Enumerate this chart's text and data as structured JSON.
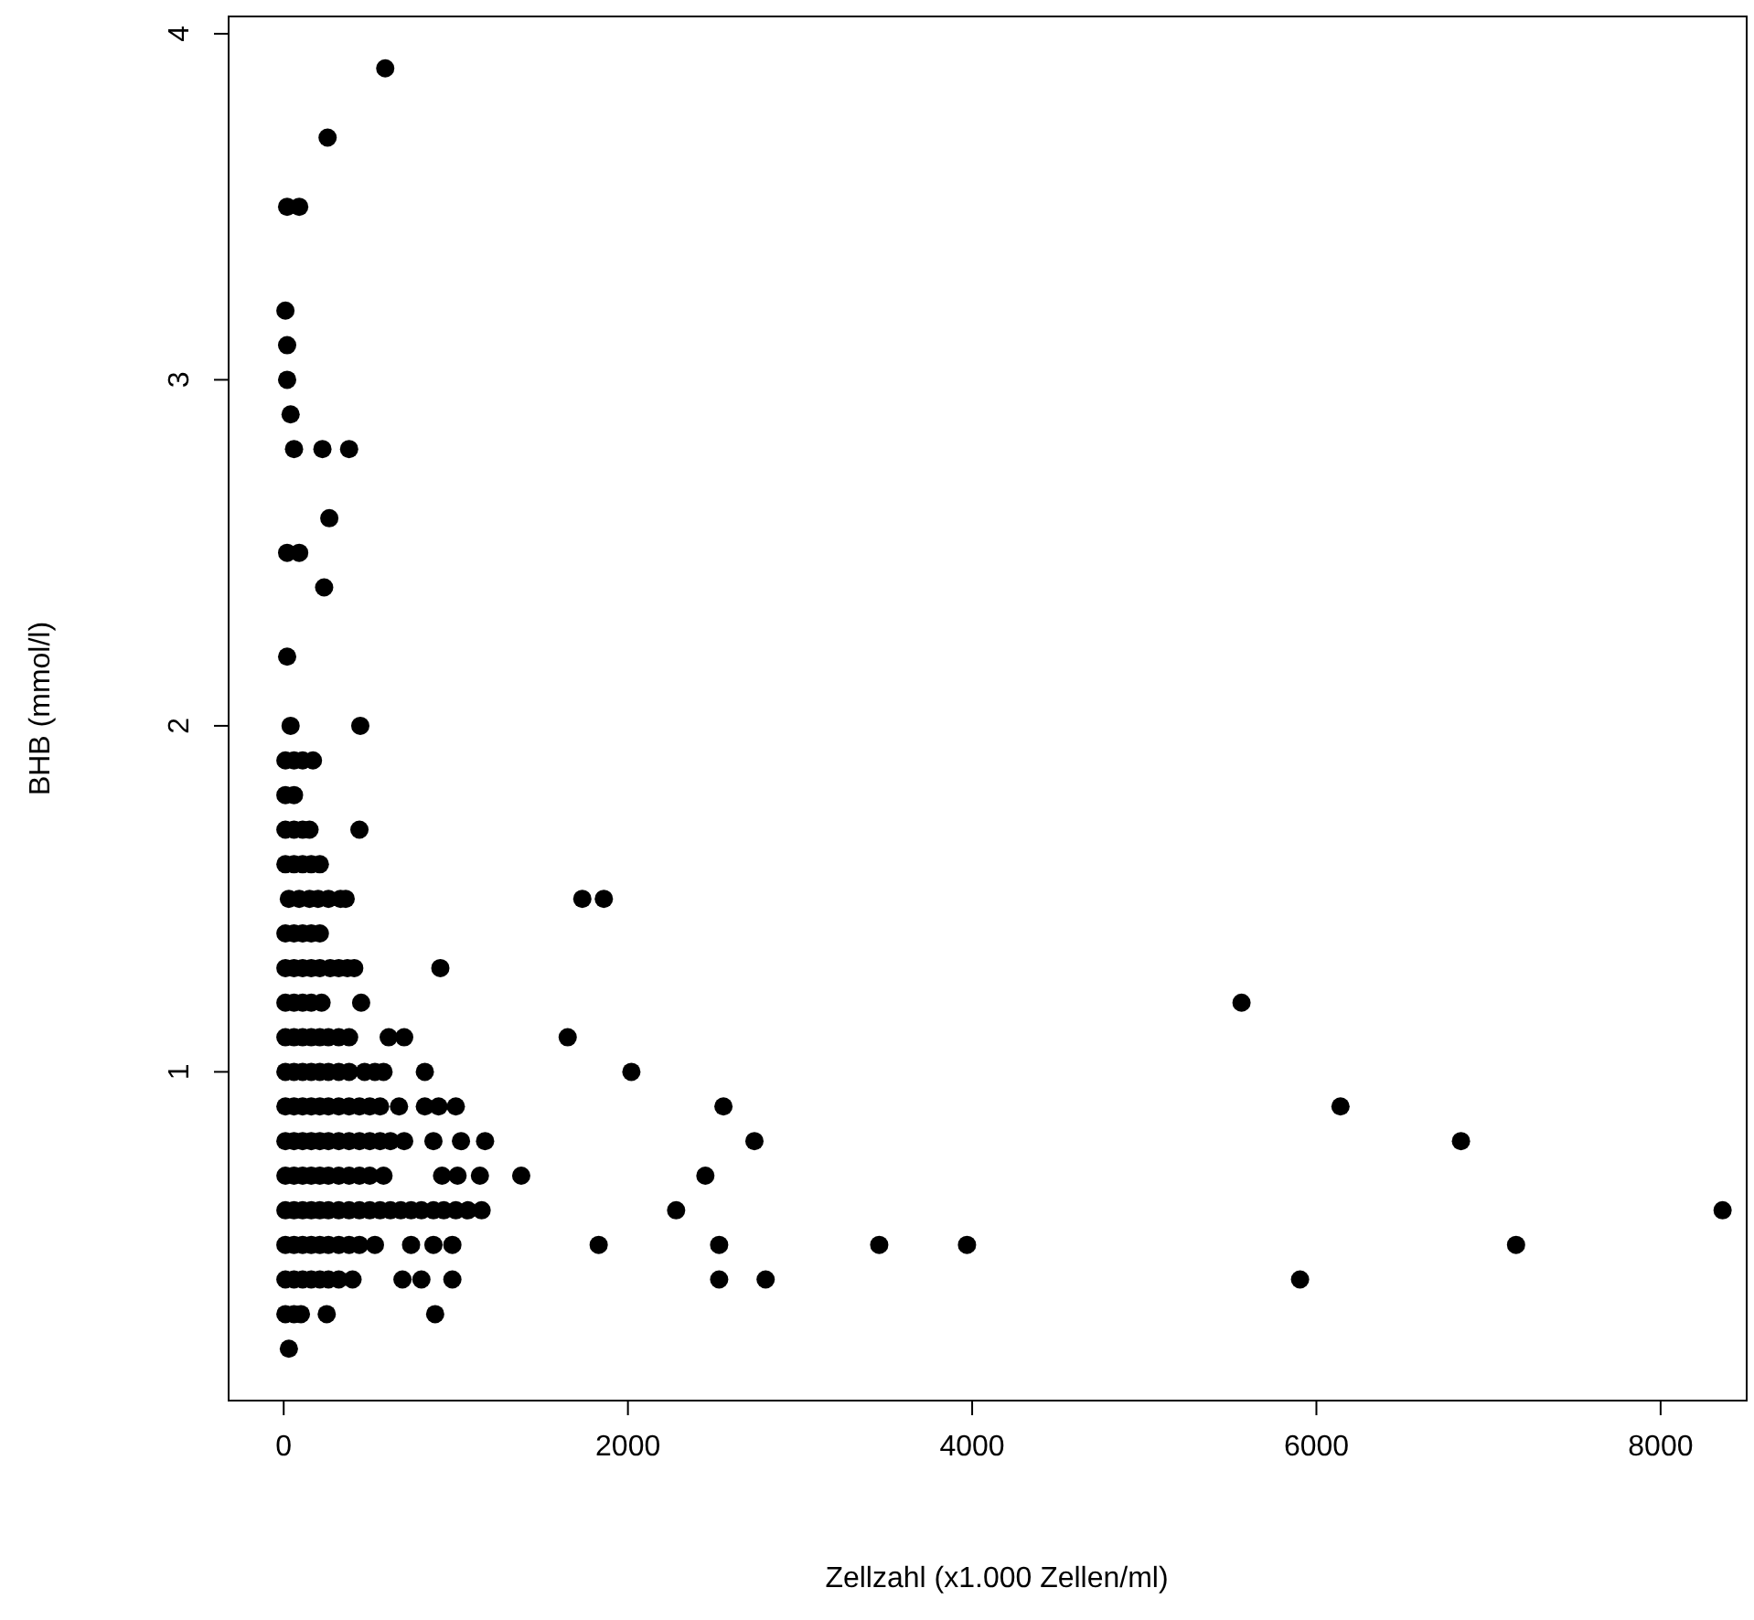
{
  "chart_data": {
    "type": "scatter",
    "xlabel": "Zellzahl (x1.000 Zellen/ml)",
    "ylabel": "BHB (mmol/l)",
    "xlim": [
      -320,
      8500
    ],
    "ylim": [
      0.05,
      4.05
    ],
    "xticks": [
      0,
      2000,
      4000,
      6000,
      8000
    ],
    "yticks": [
      1,
      2,
      3,
      4
    ],
    "grid": false,
    "marker": "circle",
    "series": [
      {
        "color": "#000000",
        "x": [
          590,
          255,
          20,
          90,
          10,
          20,
          20,
          40,
          60,
          225,
          380,
          265,
          20,
          90,
          235,
          20,
          40,
          445,
          10,
          60,
          110,
          170,
          10,
          60,
          10,
          60,
          110,
          150,
          440,
          10,
          60,
          110,
          160,
          210,
          30,
          90,
          150,
          200,
          260,
          330,
          360,
          1735,
          1860,
          10,
          60,
          110,
          160,
          210,
          10,
          60,
          110,
          160,
          210,
          270,
          320,
          370,
          410,
          910,
          10,
          60,
          110,
          160,
          220,
          450,
          5565,
          10,
          60,
          110,
          160,
          210,
          260,
          320,
          380,
          610,
          700,
          1650,
          10,
          60,
          110,
          160,
          210,
          260,
          320,
          380,
          470,
          530,
          580,
          820,
          2020,
          10,
          60,
          110,
          160,
          210,
          260,
          320,
          380,
          440,
          500,
          560,
          670,
          820,
          900,
          1000,
          2555,
          6140,
          10,
          60,
          110,
          160,
          210,
          260,
          320,
          380,
          440,
          500,
          560,
          620,
          700,
          870,
          1030,
          1170,
          2735,
          6840,
          10,
          60,
          110,
          160,
          210,
          260,
          320,
          380,
          440,
          500,
          580,
          920,
          1010,
          1140,
          1380,
          2450,
          10,
          60,
          110,
          160,
          210,
          260,
          320,
          380,
          440,
          500,
          560,
          620,
          680,
          740,
          800,
          870,
          930,
          1000,
          1070,
          1150,
          2280,
          8360,
          10,
          60,
          110,
          160,
          210,
          260,
          320,
          380,
          440,
          530,
          740,
          870,
          980,
          1830,
          2530,
          3460,
          3970,
          7160,
          10,
          60,
          110,
          160,
          210,
          260,
          320,
          400,
          690,
          800,
          980,
          2530,
          2800,
          5905,
          10,
          60,
          100,
          250,
          880,
          30
        ],
        "values": [
          3.9,
          3.7,
          3.5,
          3.5,
          3.2,
          3.1,
          3.0,
          2.9,
          2.8,
          2.8,
          2.8,
          2.6,
          2.5,
          2.5,
          2.4,
          2.2,
          2.0,
          2.0,
          1.9,
          1.9,
          1.9,
          1.9,
          1.8,
          1.8,
          1.7,
          1.7,
          1.7,
          1.7,
          1.7,
          1.6,
          1.6,
          1.6,
          1.6,
          1.6,
          1.5,
          1.5,
          1.5,
          1.5,
          1.5,
          1.5,
          1.5,
          1.5,
          1.5,
          1.4,
          1.4,
          1.4,
          1.4,
          1.4,
          1.3,
          1.3,
          1.3,
          1.3,
          1.3,
          1.3,
          1.3,
          1.3,
          1.3,
          1.3,
          1.2,
          1.2,
          1.2,
          1.2,
          1.2,
          1.2,
          1.2,
          1.1,
          1.1,
          1.1,
          1.1,
          1.1,
          1.1,
          1.1,
          1.1,
          1.1,
          1.1,
          1.1,
          1.0,
          1.0,
          1.0,
          1.0,
          1.0,
          1.0,
          1.0,
          1.0,
          1.0,
          1.0,
          1.0,
          1.0,
          1.0,
          0.9,
          0.9,
          0.9,
          0.9,
          0.9,
          0.9,
          0.9,
          0.9,
          0.9,
          0.9,
          0.9,
          0.9,
          0.9,
          0.9,
          0.9,
          0.9,
          0.9,
          0.8,
          0.8,
          0.8,
          0.8,
          0.8,
          0.8,
          0.8,
          0.8,
          0.8,
          0.8,
          0.8,
          0.8,
          0.8,
          0.8,
          0.8,
          0.8,
          0.8,
          0.8,
          0.7,
          0.7,
          0.7,
          0.7,
          0.7,
          0.7,
          0.7,
          0.7,
          0.7,
          0.7,
          0.7,
          0.7,
          0.7,
          0.7,
          0.7,
          0.7,
          0.6,
          0.6,
          0.6,
          0.6,
          0.6,
          0.6,
          0.6,
          0.6,
          0.6,
          0.6,
          0.6,
          0.6,
          0.6,
          0.6,
          0.6,
          0.6,
          0.6,
          0.6,
          0.6,
          0.6,
          0.6,
          0.6,
          0.5,
          0.5,
          0.5,
          0.5,
          0.5,
          0.5,
          0.5,
          0.5,
          0.5,
          0.5,
          0.5,
          0.5,
          0.5,
          0.5,
          0.5,
          0.5,
          0.5,
          0.5,
          0.4,
          0.4,
          0.4,
          0.4,
          0.4,
          0.4,
          0.4,
          0.4,
          0.4,
          0.4,
          0.4,
          0.4,
          0.4,
          0.4,
          0.3,
          0.3,
          0.3,
          0.3,
          0.3,
          0.2
        ]
      }
    ]
  }
}
